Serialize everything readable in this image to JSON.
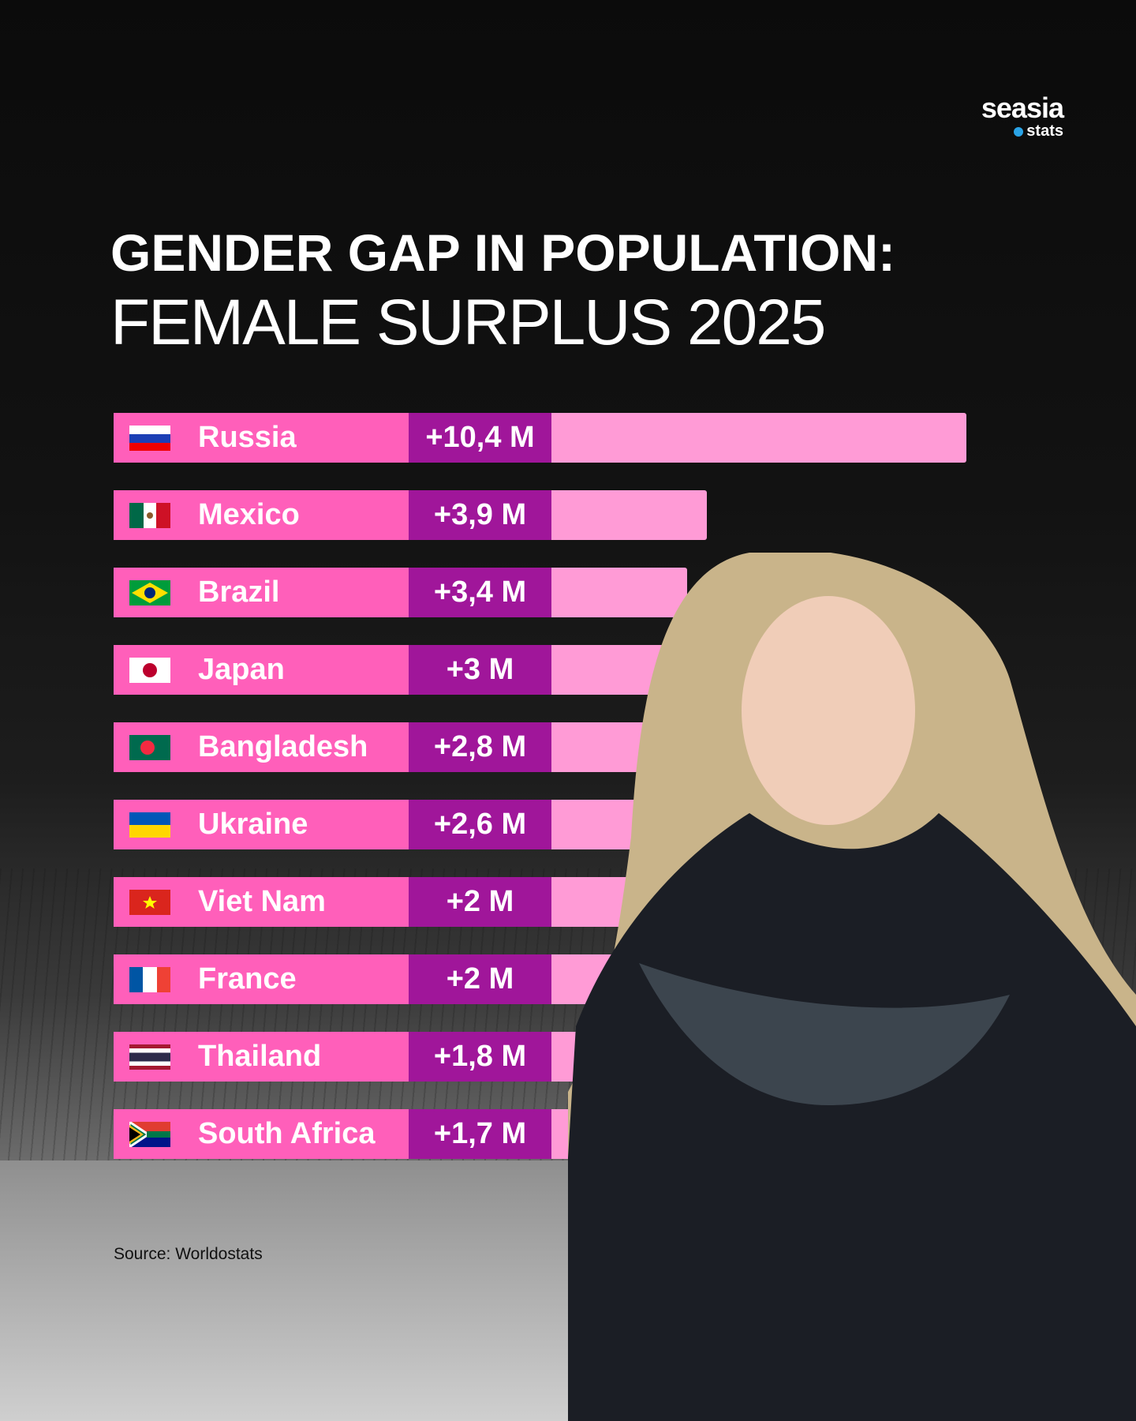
{
  "logo": {
    "brand": "seasia",
    "sub": "stats"
  },
  "title_line1": "GENDER GAP IN POPULATION:",
  "title_line2": "FEMALE SURPLUS 2025",
  "source": "Source: Worldostats",
  "colors": {
    "name_bg": "#ff5fba",
    "value_bg": "#a0169a",
    "bar_bg": "#ff9bd6"
  },
  "chart_data": {
    "type": "bar",
    "title": "GENDER GAP IN POPULATION: FEMALE SURPLUS 2025",
    "unit": "million (female surplus)",
    "categories": [
      "Russia",
      "Mexico",
      "Brazil",
      "Japan",
      "Bangladesh",
      "Ukraine",
      "Viet Nam",
      "France",
      "Thailand",
      "South Africa"
    ],
    "values": [
      10.4,
      3.9,
      3.4,
      3,
      2.8,
      2.6,
      2,
      2,
      1.8,
      1.7
    ],
    "labels": [
      "+10,4 M",
      "+3,9 M",
      "+3,4 M",
      "+3 M",
      "+2,8 M",
      "+2,6 M",
      "+2 M",
      "+2 M",
      "+1,8 M",
      "+1,7 M"
    ],
    "flags": [
      "russia",
      "mexico",
      "brazil",
      "japan",
      "bangladesh",
      "ukraine",
      "vietnam",
      "france",
      "thailand",
      "south-africa"
    ]
  }
}
